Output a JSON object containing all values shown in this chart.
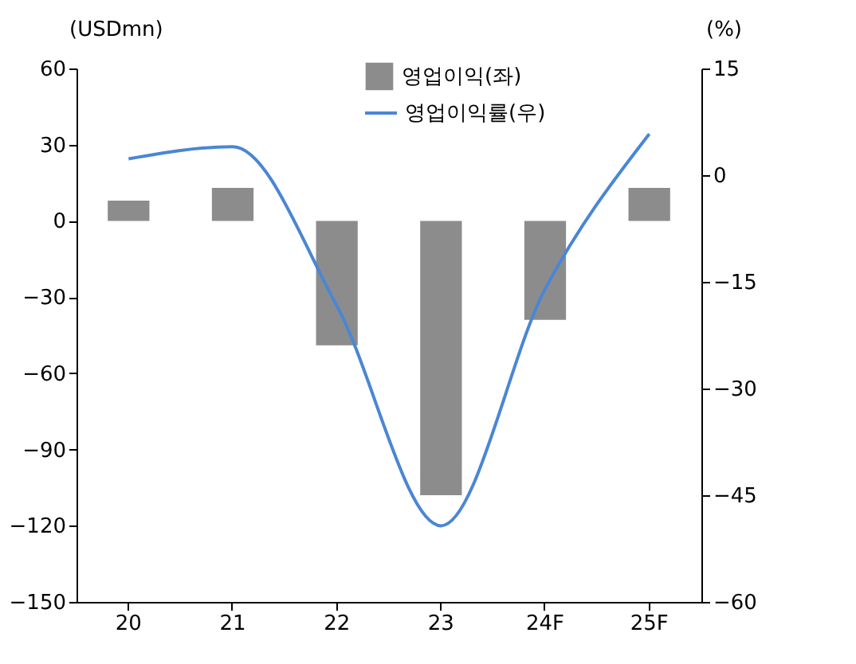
{
  "chart_data": {
    "type": "bar",
    "categories": [
      "20",
      "21",
      "22",
      "23",
      "24F",
      "25F"
    ],
    "series": [
      {
        "name": "영업이익(좌)",
        "color": "#8c8c8c",
        "values": [
          8,
          13,
          -49,
          -108,
          -39,
          13
        ]
      },
      {
        "name": "영업이익률(우)",
        "type": "line",
        "axis": "y2",
        "color": "#4a86d4",
        "values": [
          2.3,
          4.0,
          -18.4,
          -49.3,
          -16,
          5.8
        ]
      }
    ],
    "ylabel": "(USDmn)",
    "y2label": "(%)",
    "ylim": [
      -150,
      60
    ],
    "yticks": [
      -150,
      -120,
      -90,
      -60,
      -30,
      0,
      30,
      60
    ],
    "y2lim": [
      -60,
      15
    ],
    "y2ticks": [
      -60,
      -45,
      -30,
      -15,
      0,
      15
    ],
    "legend": "top right",
    "grid": false
  }
}
